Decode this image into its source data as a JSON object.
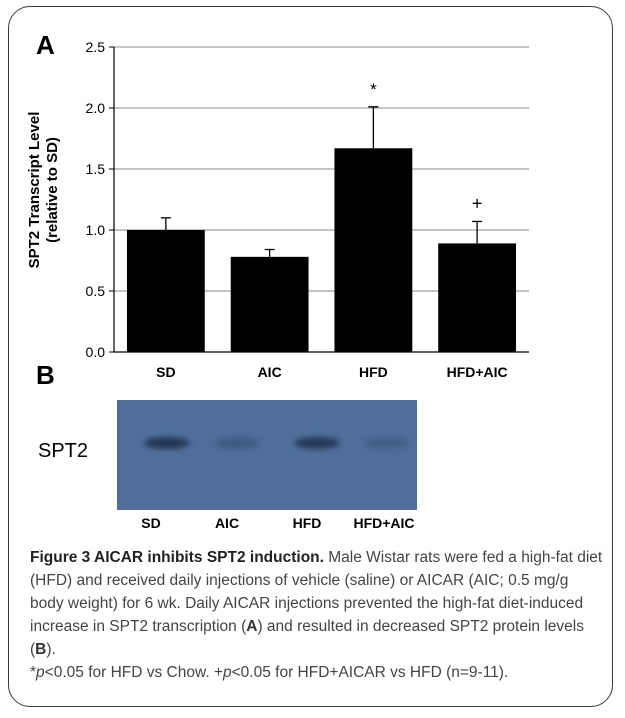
{
  "panel_a_label": "A",
  "panel_b_label": "B",
  "chart_data": {
    "type": "bar",
    "title": "",
    "xlabel": "",
    "ylabel": "SPT2 Transcript Level (relative to SD)",
    "ylabel_lines": [
      "SPT2 Transcript Level",
      "(relative to SD)"
    ],
    "categories": [
      "SD",
      "AIC",
      "HFD",
      "HFD+AIC"
    ],
    "values": [
      1.0,
      0.78,
      1.67,
      0.89
    ],
    "errors": [
      0.1,
      0.06,
      0.34,
      0.18
    ],
    "annotations": [
      "",
      "",
      "*",
      "+"
    ],
    "ylim": [
      0,
      2.5
    ],
    "yticks": [
      "0.0",
      "0.5",
      "1.0",
      "1.5",
      "2.0",
      "2.5"
    ],
    "grid": true,
    "bar_color": "#000000"
  },
  "blot": {
    "row_label": "SPT2",
    "lanes": [
      "SD",
      "AIC",
      "HFD",
      "HFD+AIC"
    ],
    "band_intensity": [
      0.85,
      0.3,
      0.8,
      0.25
    ],
    "background_color": "#4f6f9a",
    "band_color": "#1c2c4a"
  },
  "caption": {
    "title": "Figure 3 AICAR inhibits SPT2 induction.",
    "text_1": " Male Wistar rats were fed a high-fat diet (HFD) and received daily injections of vehicle (saline) or AICAR (AIC; 0.5 mg/g body weight) for 6 wk. Daily AICAR injections prevented the high-fat diet-induced increase in SPT2 transcription (",
    "ref_a": "A",
    "text_2": ") and resulted in decreased SPT2 protein levels (",
    "ref_b": "B",
    "text_3": ").",
    "sig_1_sym": "*",
    "sig_1_p": "p",
    "sig_1_text": "<0.05 for HFD vs Chow. +",
    "sig_2_p": "p",
    "sig_2_text": "<0.05 for HFD+AICAR vs HFD (n=9-11)."
  }
}
